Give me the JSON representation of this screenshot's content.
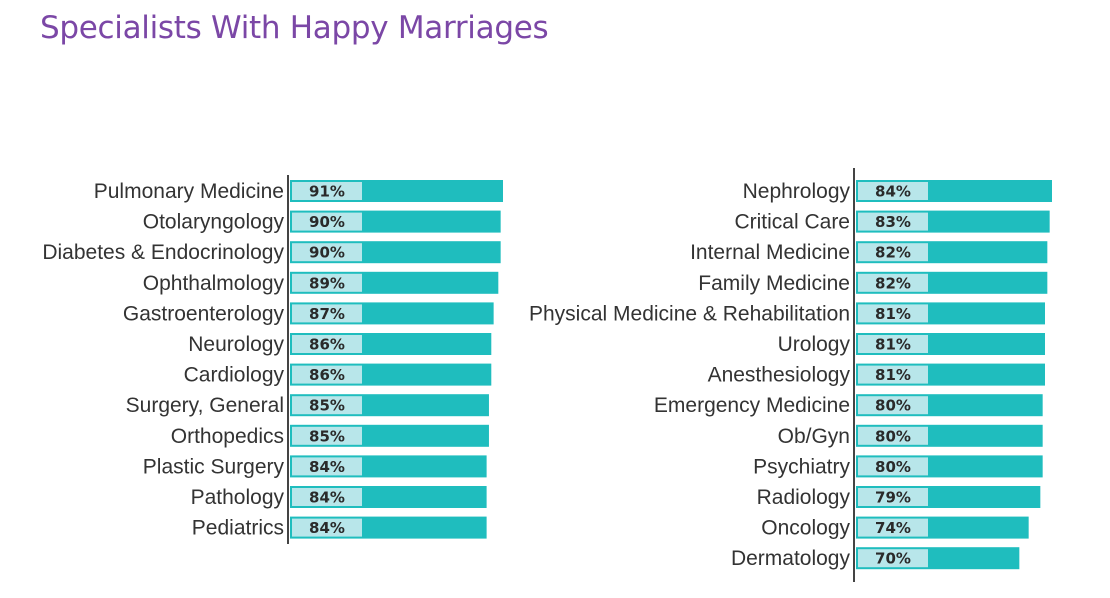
{
  "title": "Specialists With Happy Marriages",
  "colors": {
    "title": "#7b47a6",
    "bar": "#1fbdbe",
    "label_box": "#b8e6ea",
    "axis": "#444444",
    "category_text": "#333333",
    "value_text": "#2a2a2a"
  },
  "chart_data": [
    {
      "type": "bar",
      "orientation": "horizontal",
      "categories": [
        "Pulmonary Medicine",
        "Otolaryngology",
        "Diabetes & Endocrinology",
        "Ophthalmology",
        "Gastroenterology",
        "Neurology",
        "Cardiology",
        "Surgery, General",
        "Orthopedics",
        "Plastic Surgery",
        "Pathology",
        "Pediatrics"
      ],
      "values": [
        91,
        90,
        90,
        89,
        87,
        86,
        86,
        85,
        85,
        84,
        84,
        84
      ],
      "value_labels": [
        "91%",
        "90%",
        "90%",
        "89%",
        "87%",
        "86%",
        "86%",
        "85%",
        "85%",
        "84%",
        "84%",
        "84%"
      ],
      "xlim": [
        0,
        91
      ]
    },
    {
      "type": "bar",
      "orientation": "horizontal",
      "categories": [
        "Nephrology",
        "Critical Care",
        "Internal Medicine",
        "Family Medicine",
        "Physical Medicine & Rehabilitation",
        "Urology",
        "Anesthesiology",
        "Emergency Medicine",
        "Ob/Gyn",
        "Psychiatry",
        "Radiology",
        "Oncology",
        "Dermatology"
      ],
      "values": [
        84,
        83,
        82,
        82,
        81,
        81,
        81,
        80,
        80,
        80,
        79,
        74,
        70
      ],
      "value_labels": [
        "84%",
        "83%",
        "82%",
        "82%",
        "81%",
        "81%",
        "81%",
        "80%",
        "80%",
        "80%",
        "79%",
        "74%",
        "70%"
      ],
      "xlim": [
        0,
        84
      ]
    }
  ]
}
